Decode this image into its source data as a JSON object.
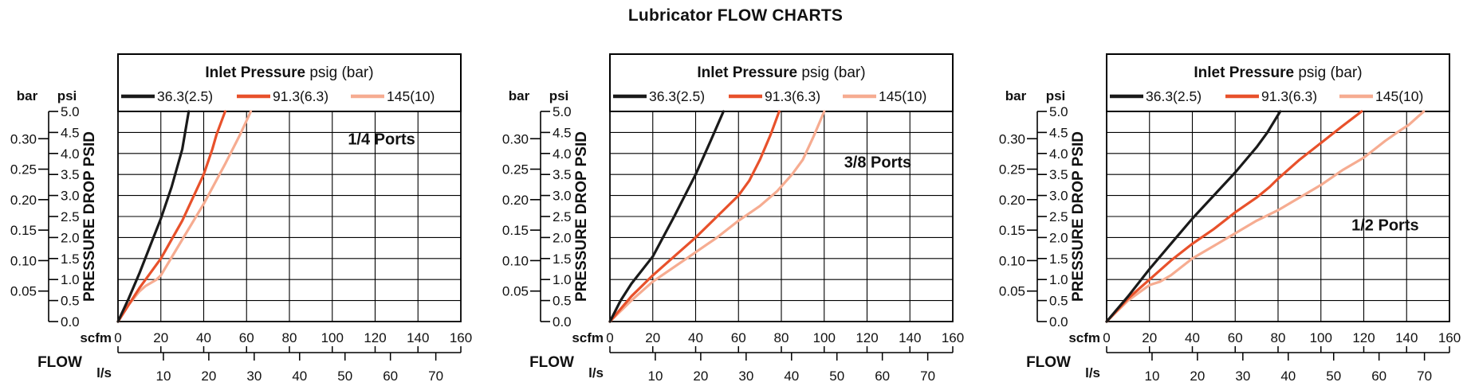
{
  "chart_data": {
    "type": "line",
    "title": "Lubricator FLOW CHARTS",
    "legend": {
      "position": "top",
      "title_bold": "Inlet Pressure",
      "title_suffix": " psig (bar)",
      "entries": [
        "36.3(2.5)",
        "91.3(6.3)",
        "145(10)"
      ]
    },
    "colors": {
      "36.3(2.5)": "#1a1a1a",
      "91.3(6.3)": "#e8512b",
      "145(10)": "#f6ac91",
      "grid": "#000000",
      "text": "#111111"
    },
    "axes": {
      "y_psi": {
        "header": "psi",
        "title": "PRESSURE DROP PSID",
        "ticks": [
          "5.0",
          "4.5",
          "4.0",
          "3.5",
          "3.0",
          "2.5",
          "2.0",
          "1.5",
          "1.0",
          "0.5",
          "0.0"
        ],
        "range": [
          0,
          5
        ],
        "grid_step": 0.5
      },
      "y_bar": {
        "header": "bar",
        "ticks": [
          "0.30",
          "0.25",
          "0.20",
          "0.15",
          "0.10",
          "0.05"
        ],
        "bar_to_psi": 14.5038
      },
      "x_scfm": {
        "unit_label": "scfm",
        "flow_label": "FLOW",
        "ticks": [
          0,
          20,
          40,
          60,
          80,
          100,
          120,
          140,
          160
        ],
        "range": [
          0,
          160
        ],
        "grid_step": 20
      },
      "x_ls": {
        "unit_label": "l/s",
        "ticks": [
          10,
          20,
          30,
          40,
          50,
          60,
          70
        ],
        "ls_to_scfm": 2.1189
      },
      "grid": true
    },
    "charts": [
      {
        "port_label": "1/4 Ports",
        "label_center_scfm_psi": [
          123,
          4.35
        ],
        "series": [
          {
            "name": "36.3(2.5)",
            "points_scfm_psi": [
              [
                0,
                0
              ],
              [
                5,
                0.55
              ],
              [
                10,
                1.15
              ],
              [
                15,
                1.8
              ],
              [
                20,
                2.45
              ],
              [
                25,
                3.2
              ],
              [
                30,
                4.1
              ],
              [
                33,
                5.0
              ]
            ]
          },
          {
            "name": "91.3(6.3)",
            "points_scfm_psi": [
              [
                0,
                0
              ],
              [
                10,
                0.8
              ],
              [
                20,
                1.5
              ],
              [
                30,
                2.4
              ],
              [
                40,
                3.5
              ],
              [
                44,
                4.1
              ],
              [
                46,
                4.45
              ],
              [
                50,
                5.0
              ]
            ]
          },
          {
            "name": "145(10)",
            "points_scfm_psi": [
              [
                0,
                0
              ],
              [
                5,
                0.4
              ],
              [
                10,
                0.72
              ],
              [
                13,
                0.85
              ],
              [
                18,
                1.0
              ],
              [
                20,
                1.1
              ],
              [
                30,
                1.95
              ],
              [
                40,
                2.8
              ],
              [
                50,
                3.75
              ],
              [
                57,
                4.45
              ],
              [
                62,
                5.0
              ]
            ]
          }
        ]
      },
      {
        "port_label": "3/8 Ports",
        "label_center_scfm_psi": [
          125,
          3.8
        ],
        "series": [
          {
            "name": "36.3(2.5)",
            "points_scfm_psi": [
              [
                0,
                0
              ],
              [
                5,
                0.5
              ],
              [
                10,
                0.9
              ],
              [
                20,
                1.55
              ],
              [
                30,
                2.5
              ],
              [
                40,
                3.5
              ],
              [
                47,
                4.3
              ],
              [
                53,
                5.0
              ]
            ]
          },
          {
            "name": "91.3(6.3)",
            "points_scfm_psi": [
              [
                0,
                0
              ],
              [
                10,
                0.6
              ],
              [
                20,
                1.1
              ],
              [
                30,
                1.55
              ],
              [
                40,
                2.0
              ],
              [
                50,
                2.5
              ],
              [
                60,
                3.0
              ],
              [
                65,
                3.35
              ],
              [
                70,
                3.85
              ],
              [
                75,
                4.45
              ],
              [
                79,
                5.0
              ]
            ]
          },
          {
            "name": "145(10)",
            "points_scfm_psi": [
              [
                0,
                0
              ],
              [
                10,
                0.5
              ],
              [
                20,
                0.95
              ],
              [
                30,
                1.3
              ],
              [
                40,
                1.65
              ],
              [
                50,
                2.0
              ],
              [
                60,
                2.4
              ],
              [
                70,
                2.75
              ],
              [
                78,
                3.1
              ],
              [
                85,
                3.5
              ],
              [
                90,
                3.85
              ],
              [
                95,
                4.4
              ],
              [
                100,
                5.0
              ]
            ]
          }
        ]
      },
      {
        "port_label": "1/2 Ports",
        "label_center_scfm_psi": [
          130,
          2.3
        ],
        "series": [
          {
            "name": "36.3(2.5)",
            "points_scfm_psi": [
              [
                0,
                0
              ],
              [
                10,
                0.6
              ],
              [
                20,
                1.25
              ],
              [
                30,
                1.85
              ],
              [
                40,
                2.45
              ],
              [
                50,
                3.0
              ],
              [
                60,
                3.55
              ],
              [
                70,
                4.15
              ],
              [
                75,
                4.5
              ],
              [
                81,
                5.0
              ]
            ]
          },
          {
            "name": "91.3(6.3)",
            "points_scfm_psi": [
              [
                0,
                0
              ],
              [
                10,
                0.55
              ],
              [
                20,
                1.0
              ],
              [
                30,
                1.45
              ],
              [
                40,
                1.85
              ],
              [
                50,
                2.2
              ],
              [
                60,
                2.6
              ],
              [
                70,
                2.95
              ],
              [
                76,
                3.2
              ],
              [
                80,
                3.4
              ],
              [
                90,
                3.85
              ],
              [
                100,
                4.25
              ],
              [
                110,
                4.65
              ],
              [
                119,
                5.0
              ]
            ]
          },
          {
            "name": "145(10)",
            "points_scfm_psi": [
              [
                0,
                0
              ],
              [
                10,
                0.5
              ],
              [
                20,
                0.87
              ],
              [
                25,
                0.95
              ],
              [
                30,
                1.1
              ],
              [
                40,
                1.5
              ],
              [
                50,
                1.8
              ],
              [
                60,
                2.1
              ],
              [
                70,
                2.4
              ],
              [
                80,
                2.65
              ],
              [
                90,
                2.95
              ],
              [
                100,
                3.25
              ],
              [
                110,
                3.6
              ],
              [
                120,
                3.9
              ],
              [
                130,
                4.3
              ],
              [
                137,
                4.55
              ],
              [
                141,
                4.68
              ],
              [
                148,
                5.0
              ]
            ]
          }
        ]
      }
    ]
  }
}
